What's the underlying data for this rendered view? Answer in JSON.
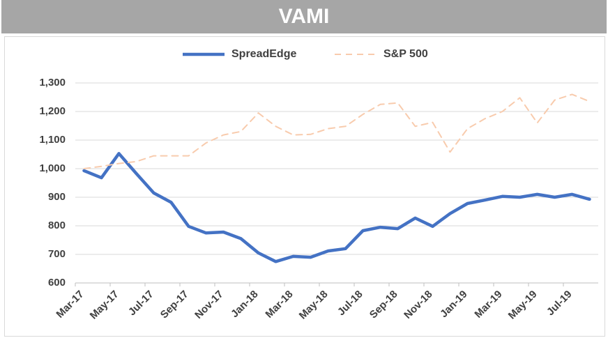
{
  "chart_data": {
    "type": "line",
    "title": "VAMI",
    "categories": [
      "Mar-17",
      null,
      "May-17",
      null,
      "Jul-17",
      null,
      "Sep-17",
      null,
      "Nov-17",
      null,
      "Jan-18",
      null,
      "Mar-18",
      null,
      "May-18",
      null,
      "Jul-18",
      null,
      "Sep-18",
      null,
      "Nov-18",
      null,
      "Jan-19",
      null,
      "Mar-19",
      null,
      "May-19",
      null,
      "Jul-19",
      null
    ],
    "series": [
      {
        "name": "SpreadEdge",
        "color": "#4472c4",
        "style": "solid",
        "values": [
          993,
          968,
          1053,
          983,
          915,
          882,
          798,
          775,
          778,
          755,
          705,
          675,
          693,
          690,
          712,
          720,
          783,
          795,
          790,
          827,
          798,
          843,
          878,
          890,
          903,
          900,
          910,
          900,
          910,
          893
        ]
      },
      {
        "name": "S&P 500",
        "color": "#f8cbad",
        "style": "dashed",
        "values": [
          1000,
          1008,
          1018,
          1025,
          1045,
          1045,
          1045,
          1090,
          1118,
          1130,
          1195,
          1148,
          1118,
          1120,
          1140,
          1148,
          1190,
          1225,
          1230,
          1148,
          1162,
          1058,
          1140,
          1175,
          1200,
          1248,
          1160,
          1240,
          1260,
          1235
        ]
      }
    ],
    "ylim": [
      600,
      1300
    ],
    "yticks": [
      600,
      700,
      800,
      900,
      {
        "value": 1000,
        "label": "1,000"
      },
      {
        "value": 1100,
        "label": "1,100"
      },
      {
        "value": 1200,
        "label": "1,200"
      },
      {
        "value": 1300,
        "label": "1,300"
      }
    ],
    "grid": true,
    "legend": "top"
  }
}
